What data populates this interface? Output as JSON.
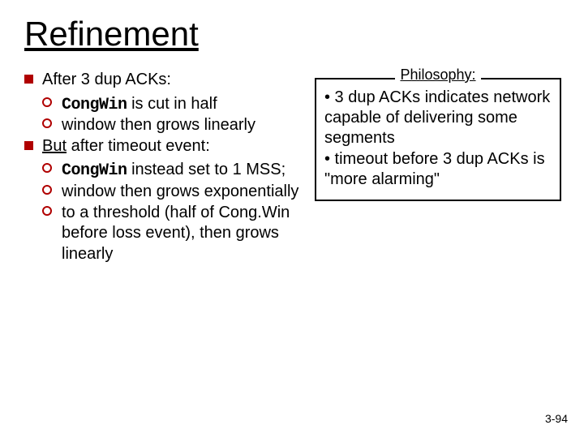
{
  "title": "Refinement",
  "left": {
    "item1": {
      "lead": "After 3 dup ACKs:",
      "sub1_code": "CongWin",
      "sub1_rest": " is cut in half",
      "sub2": "window then grows linearly"
    },
    "item2": {
      "u": "But",
      "rest": " after timeout event:",
      "sub1_code": "CongWin",
      "sub1_rest": " instead set to 1 MSS;",
      "sub2": "window then grows exponentially",
      "sub3": "to a threshold (half of Cong.Win before loss event), then grows linearly"
    }
  },
  "right": {
    "label": "Philosophy:",
    "line1": "• 3 dup ACKs indicates network capable of delivering some segments",
    "line2": "• timeout before 3 dup ACKs is \"more alarming\""
  },
  "pagenum": "3-94",
  "colors": {
    "bullet": "#b00000"
  }
}
